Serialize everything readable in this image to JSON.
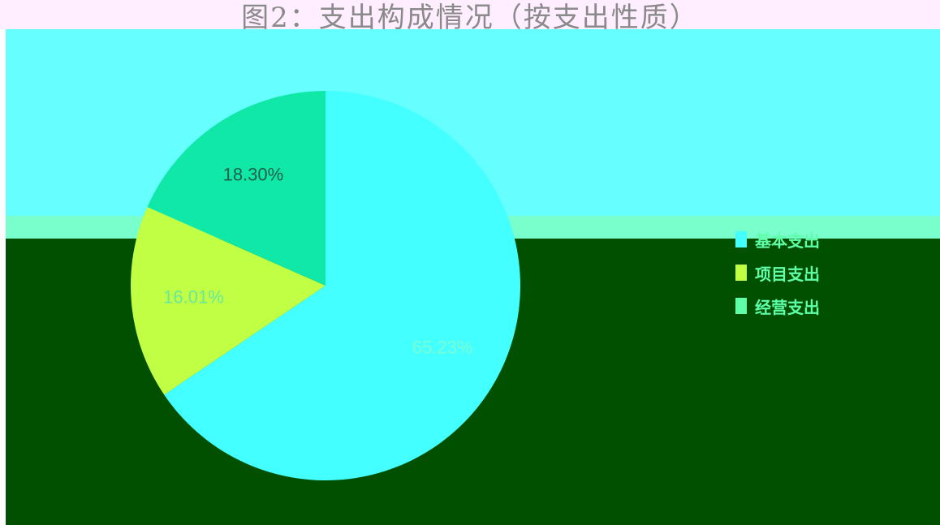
{
  "title": "图2：支出构成情况（按支出性质）",
  "chart_data": {
    "type": "pie",
    "title": "图2：支出构成情况（按支出性质）",
    "series": [
      {
        "categories": [
          "基本支出",
          "项目支出",
          "经营支出"
        ],
        "values": [
          65.23,
          16.01,
          18.3
        ],
        "labels": [
          "65.23%",
          "16.01%",
          "18.30%"
        ],
        "colors": [
          "#44ffff",
          "#c0ff44",
          "#10e8a8"
        ]
      }
    ],
    "legend_position": "right"
  },
  "legend": {
    "items": [
      {
        "label": "基本支出",
        "color": "#44ffff"
      },
      {
        "label": "项目支出",
        "color": "#c0ff44"
      },
      {
        "label": "经营支出",
        "color": "#5effa8"
      }
    ]
  }
}
